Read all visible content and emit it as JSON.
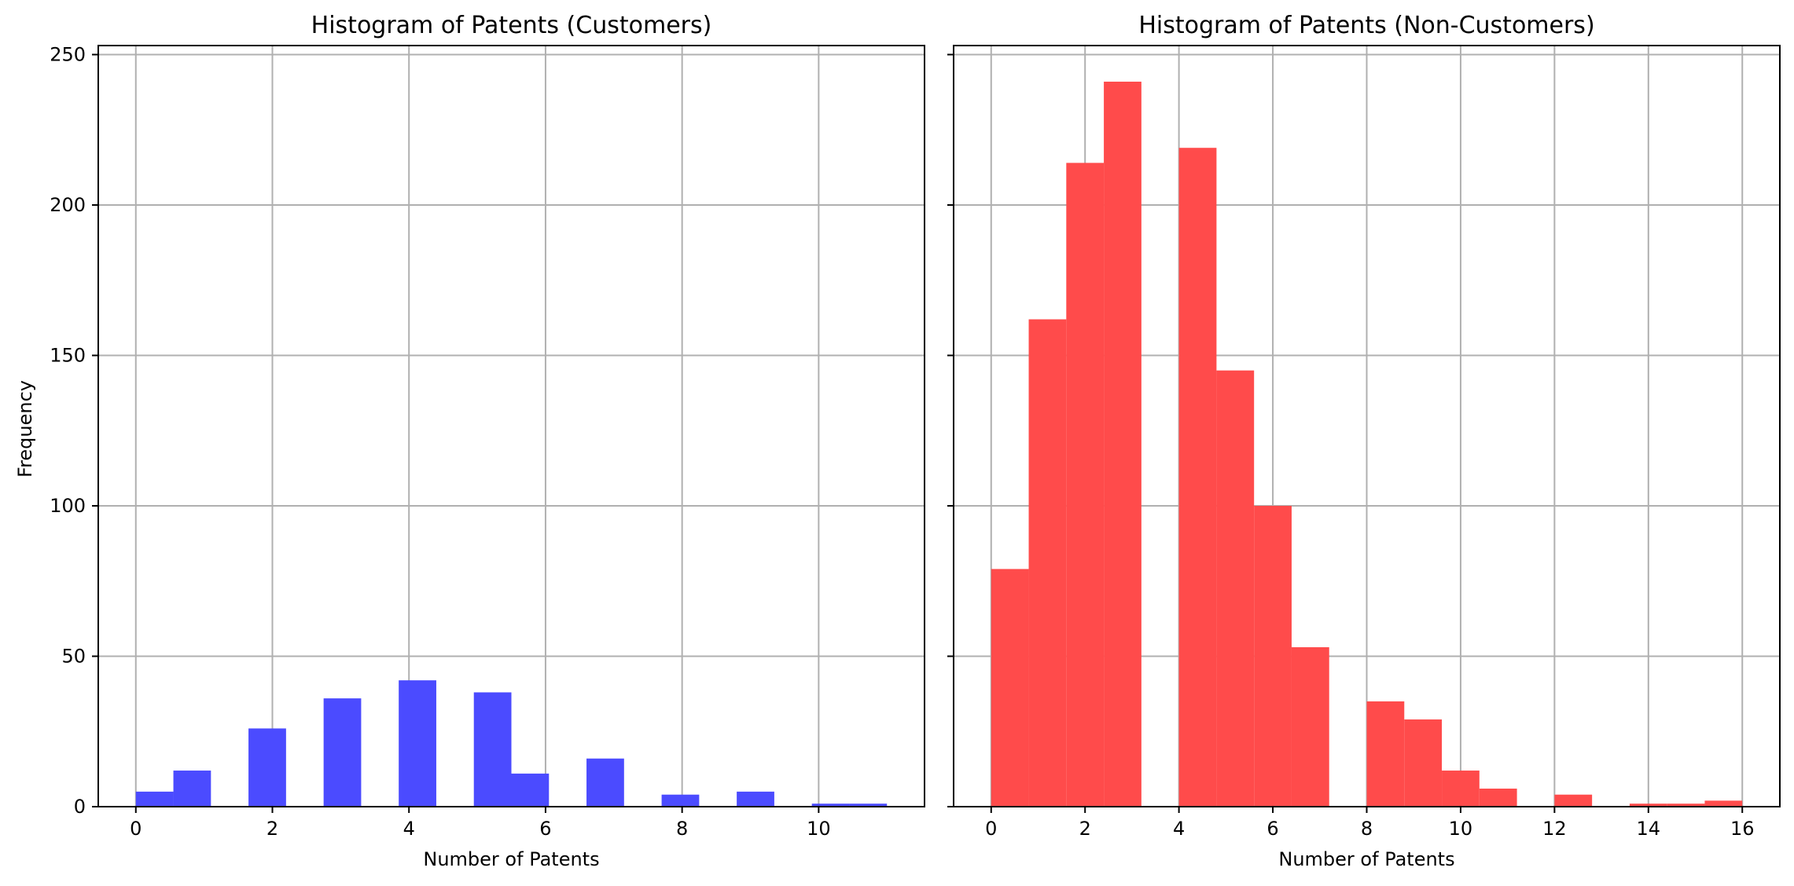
{
  "figure": {
    "ylabel": "Frequency"
  },
  "chart_data": [
    {
      "type": "bar",
      "title": "Histogram of Patents (Customers)",
      "xlabel": "Number of Patents",
      "ylabel": "Frequency",
      "color": "#4B4BFF",
      "xlim": [
        -0.55,
        11.55
      ],
      "ylim": [
        0,
        253
      ],
      "xticks": [
        0,
        2,
        4,
        6,
        8,
        10
      ],
      "yticks": [
        0,
        50,
        100,
        150,
        200,
        250
      ],
      "grid": true,
      "bin_width": 0.55,
      "bins": [
        {
          "x0": 0.0,
          "value": 5
        },
        {
          "x0": 0.55,
          "value": 12
        },
        {
          "x0": 1.1,
          "value": 0
        },
        {
          "x0": 1.65,
          "value": 26
        },
        {
          "x0": 2.2,
          "value": 0
        },
        {
          "x0": 2.75,
          "value": 36
        },
        {
          "x0": 3.3,
          "value": 0
        },
        {
          "x0": 3.85,
          "value": 42
        },
        {
          "x0": 4.4,
          "value": 0
        },
        {
          "x0": 4.95,
          "value": 38
        },
        {
          "x0": 5.5,
          "value": 11
        },
        {
          "x0": 6.05,
          "value": 0
        },
        {
          "x0": 6.6,
          "value": 16
        },
        {
          "x0": 7.15,
          "value": 0
        },
        {
          "x0": 7.7,
          "value": 4
        },
        {
          "x0": 8.25,
          "value": 0
        },
        {
          "x0": 8.8,
          "value": 5
        },
        {
          "x0": 9.35,
          "value": 0
        },
        {
          "x0": 9.9,
          "value": 1
        },
        {
          "x0": 10.45,
          "value": 1
        }
      ]
    },
    {
      "type": "bar",
      "title": "Histogram of Patents (Non-Customers)",
      "xlabel": "Number of Patents",
      "ylabel": "",
      "color": "#FF4B4B",
      "xlim": [
        -0.8,
        16.8
      ],
      "ylim": [
        0,
        253
      ],
      "xticks": [
        0,
        2,
        4,
        6,
        8,
        10,
        12,
        14,
        16
      ],
      "yticks": [
        0,
        50,
        100,
        150,
        200,
        250
      ],
      "grid": true,
      "bin_width": 0.8,
      "bins": [
        {
          "x0": 0.0,
          "value": 79
        },
        {
          "x0": 0.8,
          "value": 162
        },
        {
          "x0": 1.6,
          "value": 214
        },
        {
          "x0": 2.4,
          "value": 241
        },
        {
          "x0": 3.2,
          "value": 0
        },
        {
          "x0": 4.0,
          "value": 219
        },
        {
          "x0": 4.8,
          "value": 145
        },
        {
          "x0": 5.6,
          "value": 100
        },
        {
          "x0": 6.4,
          "value": 53
        },
        {
          "x0": 7.2,
          "value": 0
        },
        {
          "x0": 8.0,
          "value": 35
        },
        {
          "x0": 8.8,
          "value": 29
        },
        {
          "x0": 9.6,
          "value": 12
        },
        {
          "x0": 10.4,
          "value": 6
        },
        {
          "x0": 11.2,
          "value": 0
        },
        {
          "x0": 12.0,
          "value": 4
        },
        {
          "x0": 12.8,
          "value": 0
        },
        {
          "x0": 13.6,
          "value": 1
        },
        {
          "x0": 14.4,
          "value": 1
        },
        {
          "x0": 15.2,
          "value": 2
        }
      ]
    }
  ]
}
